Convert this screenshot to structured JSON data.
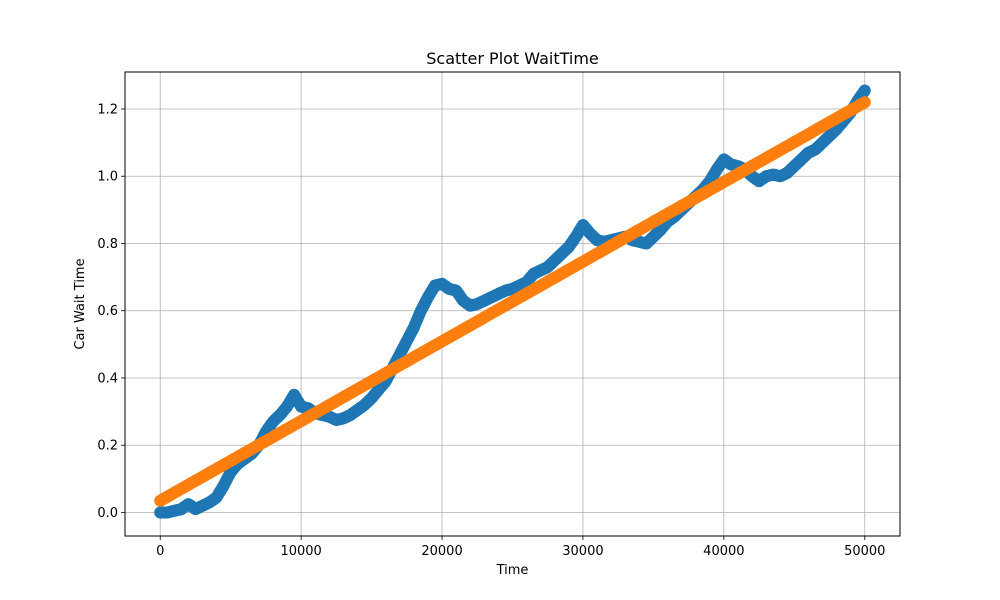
{
  "chart_data": {
    "type": "scatter",
    "title": "Scatter Plot WaitTime",
    "xlabel": "Time",
    "ylabel": "Car Wait Time",
    "xlim": [
      -2500,
      52500
    ],
    "ylim": [
      -0.07,
      1.31
    ],
    "xticks": [
      0,
      10000,
      20000,
      30000,
      40000,
      50000
    ],
    "xtick_labels": [
      "0",
      "10000",
      "20000",
      "30000",
      "40000",
      "50000"
    ],
    "yticks": [
      0.0,
      0.2,
      0.4,
      0.6,
      0.8,
      1.0,
      1.2
    ],
    "ytick_labels": [
      "0.0",
      "0.2",
      "0.4",
      "0.6",
      "0.8",
      "1.0",
      "1.2"
    ],
    "grid": true,
    "series": [
      {
        "color": "#1f77b4",
        "x": [
          0,
          500,
          1000,
          1500,
          2000,
          2500,
          3000,
          3500,
          4000,
          4500,
          5000,
          5500,
          6000,
          6500,
          7000,
          7500,
          8000,
          8500,
          9000,
          9500,
          10000,
          10500,
          11000,
          11500,
          12000,
          12500,
          13000,
          13500,
          14000,
          14500,
          15000,
          15500,
          16000,
          16500,
          17000,
          17500,
          18000,
          18500,
          19000,
          19500,
          20000,
          20500,
          21000,
          21500,
          22000,
          22500,
          23000,
          23500,
          24000,
          24500,
          25000,
          25500,
          26000,
          26500,
          27000,
          27500,
          28000,
          28500,
          29000,
          29500,
          30000,
          30500,
          31000,
          31500,
          32000,
          32500,
          33000,
          33500,
          34000,
          34500,
          35000,
          35500,
          36000,
          36500,
          37000,
          37500,
          38000,
          38500,
          39000,
          39500,
          40000,
          40500,
          41000,
          41500,
          42000,
          42500,
          43000,
          43500,
          44000,
          44500,
          45000,
          45500,
          46000,
          46500,
          47000,
          47500,
          48000,
          48500,
          49000,
          49500,
          50000
        ],
        "y": [
          0.0,
          0.0,
          0.005,
          0.01,
          0.025,
          0.01,
          0.02,
          0.03,
          0.045,
          0.08,
          0.12,
          0.145,
          0.16,
          0.175,
          0.2,
          0.24,
          0.27,
          0.29,
          0.315,
          0.35,
          0.315,
          0.31,
          0.295,
          0.29,
          0.285,
          0.275,
          0.28,
          0.29,
          0.305,
          0.32,
          0.34,
          0.365,
          0.39,
          0.43,
          0.47,
          0.51,
          0.55,
          0.6,
          0.64,
          0.675,
          0.68,
          0.665,
          0.66,
          0.63,
          0.615,
          0.62,
          0.63,
          0.64,
          0.65,
          0.66,
          0.665,
          0.675,
          0.685,
          0.71,
          0.72,
          0.73,
          0.75,
          0.77,
          0.79,
          0.82,
          0.855,
          0.83,
          0.81,
          0.805,
          0.81,
          0.815,
          0.82,
          0.81,
          0.805,
          0.8,
          0.82,
          0.84,
          0.865,
          0.88,
          0.9,
          0.92,
          0.94,
          0.96,
          0.985,
          1.02,
          1.05,
          1.035,
          1.03,
          1.02,
          1.0,
          0.985,
          1.0,
          1.005,
          1.0,
          1.01,
          1.03,
          1.05,
          1.07,
          1.08,
          1.1,
          1.12,
          1.14,
          1.165,
          1.19,
          1.225,
          1.255
        ]
      },
      {
        "color": "#ff7f0e",
        "x": [
          0,
          50000
        ],
        "y": [
          0.035,
          1.22
        ]
      }
    ]
  }
}
